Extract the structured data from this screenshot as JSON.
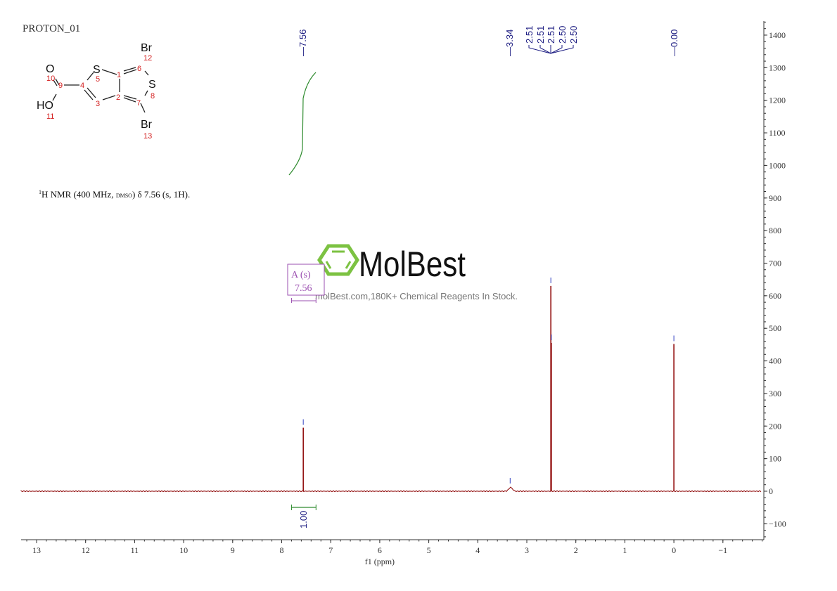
{
  "experiment_label": "PROTON_01",
  "nmr_description": {
    "sup": "1",
    "text_a": "H NMR (400 MHz, ",
    "solvent": "DMSO",
    "text_b": ") δ 7.56 (s, 1H)."
  },
  "molecule": {
    "atoms": {
      "O10": "O",
      "HO11": "HO",
      "S5": "S",
      "S8": "S",
      "Br12": "Br",
      "Br13": "Br"
    },
    "numbers": [
      "1",
      "2",
      "3",
      "4",
      "5",
      "6",
      "7",
      "8",
      "9",
      "10",
      "11",
      "12",
      "13"
    ]
  },
  "watermark": {
    "brand": "MolBest",
    "tagline": "molBest.com,180K+ Chemical Reagents In Stock."
  },
  "colors": {
    "spectrum": "#8b0000",
    "peak_labels": "#1a1a80",
    "integral": "#2e8b2e",
    "multiplet_box": "#9b4fb0",
    "atom_numbers": "#d42020",
    "logo_green": "#7cc242"
  },
  "chart_data": {
    "type": "line",
    "title": "",
    "xlabel": "f1 (ppm)",
    "ylabel": "",
    "xlim": [
      13.3,
      -1.8
    ],
    "ylim": [
      -150,
      1440
    ],
    "x_reversed": true,
    "xticks": [
      13,
      12,
      11,
      10,
      9,
      8,
      7,
      6,
      5,
      4,
      3,
      2,
      1,
      0,
      -1
    ],
    "xtick_labels": [
      "13",
      "12",
      "11",
      "10",
      "9",
      "8",
      "7",
      "6",
      "5",
      "4",
      "3",
      "2",
      "1",
      "0",
      "−1"
    ],
    "yticks": [
      -100,
      0,
      100,
      200,
      300,
      400,
      500,
      600,
      700,
      800,
      900,
      1000,
      1100,
      1200,
      1300,
      1400
    ],
    "ytick_labels": [
      "−100",
      "0",
      "100",
      "200",
      "300",
      "400",
      "500",
      "600",
      "700",
      "800",
      "900",
      "1000",
      "1100",
      "1200",
      "1300",
      "1400"
    ],
    "peaks": [
      {
        "ppm": 7.56,
        "intensity": 195
      },
      {
        "ppm": 3.34,
        "intensity": 15
      },
      {
        "ppm": 2.51,
        "intensity": 630
      },
      {
        "ppm": 2.5,
        "intensity": 455
      },
      {
        "ppm": 0.0,
        "intensity": 452
      }
    ],
    "peak_labels": [
      "7.56",
      "3.34",
      "2.51",
      "2.51",
      "2.51",
      "2.50",
      "2.50",
      "0.00"
    ],
    "integrals": [
      {
        "from": 7.8,
        "to": 7.3,
        "value": "1.00"
      }
    ],
    "multiplets": [
      {
        "label": "A (s)",
        "shift": "7.56",
        "from": 7.8,
        "to": 7.3
      }
    ],
    "grid": false
  }
}
